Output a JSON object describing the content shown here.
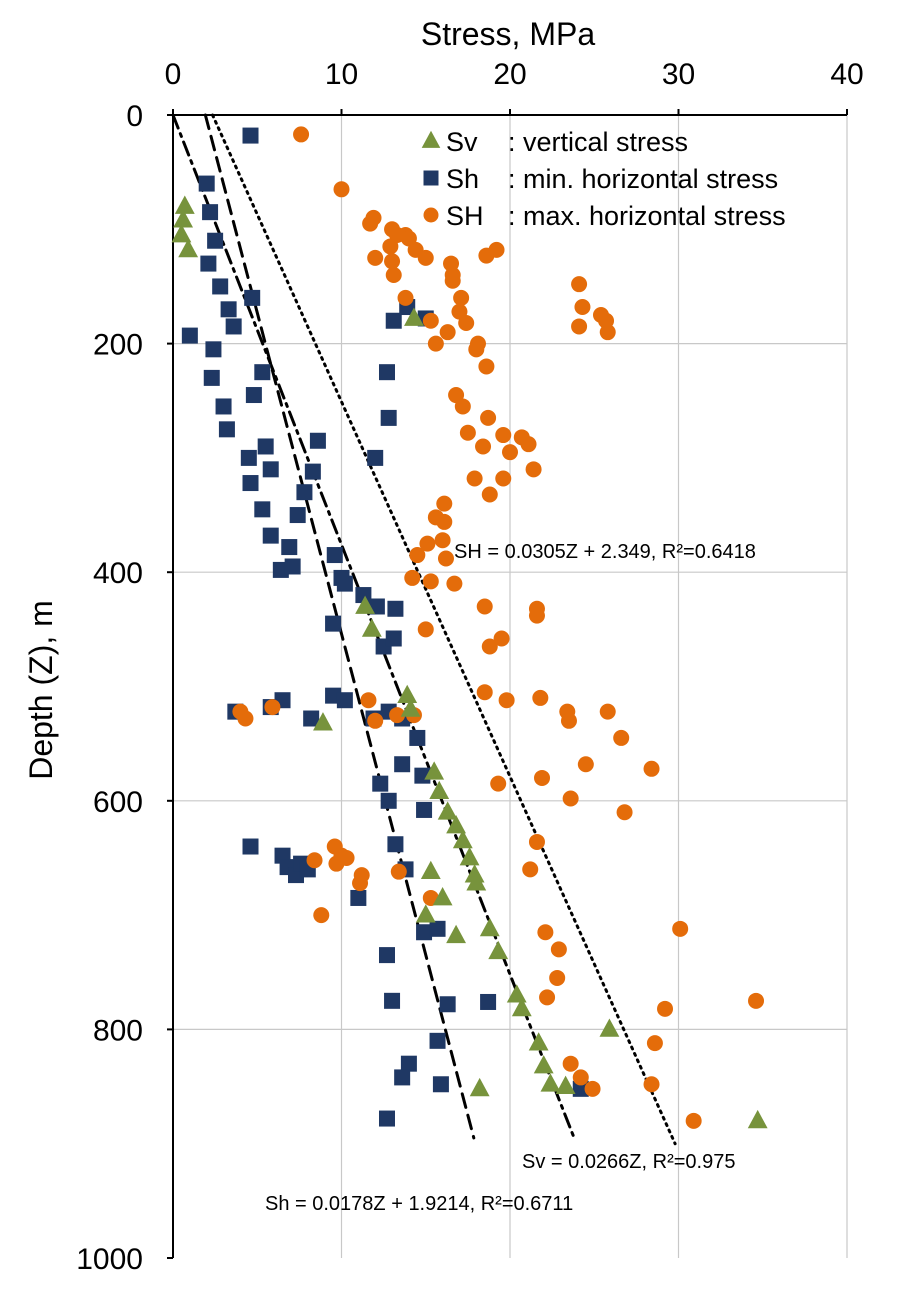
{
  "chart_data": {
    "type": "scatter",
    "xlabel": "Stress, MPa",
    "ylabel": "Depth (Z), m",
    "xlim": [
      0,
      40
    ],
    "ylim": [
      0,
      1000
    ],
    "y_inverted": true,
    "x_axis_position": "top",
    "x_ticks": [
      "0",
      "10",
      "20",
      "30",
      "40"
    ],
    "y_ticks": [
      "0",
      "200",
      "400",
      "600",
      "800",
      "1000"
    ],
    "grid": true,
    "legend_position": "top-right",
    "colors": {
      "Sv": "#77933c",
      "Sh": "#1f3864",
      "SH": "#e46c0a"
    },
    "series": [
      {
        "name": "Sv",
        "legend_label": ": vertical stress",
        "marker": "triangle",
        "points": [
          [
            0.7,
            80
          ],
          [
            0.6,
            92
          ],
          [
            0.5,
            105
          ],
          [
            0.9,
            118
          ],
          [
            14.3,
            178
          ],
          [
            8.9,
            532
          ],
          [
            11.4,
            430
          ],
          [
            11.8,
            450
          ],
          [
            13.9,
            508
          ],
          [
            14.1,
            520
          ],
          [
            15.5,
            575
          ],
          [
            15.8,
            592
          ],
          [
            16.3,
            610
          ],
          [
            16.8,
            622
          ],
          [
            17.2,
            635
          ],
          [
            17.6,
            650
          ],
          [
            17.9,
            665
          ],
          [
            18.0,
            672
          ],
          [
            15.3,
            662
          ],
          [
            15.0,
            700
          ],
          [
            16.0,
            685
          ],
          [
            16.8,
            718
          ],
          [
            18.8,
            712
          ],
          [
            19.3,
            732
          ],
          [
            20.4,
            770
          ],
          [
            20.7,
            782
          ],
          [
            21.7,
            812
          ],
          [
            22.0,
            832
          ],
          [
            22.4,
            848
          ],
          [
            23.3,
            850
          ],
          [
            25.9,
            800
          ],
          [
            18.2,
            852
          ],
          [
            34.7,
            880
          ]
        ]
      },
      {
        "name": "Sh",
        "legend_label": ": min. horizontal stress",
        "marker": "square",
        "points": [
          [
            4.6,
            18
          ],
          [
            2.0,
            60
          ],
          [
            2.2,
            85
          ],
          [
            2.5,
            110
          ],
          [
            2.1,
            130
          ],
          [
            2.8,
            150
          ],
          [
            3.3,
            170
          ],
          [
            1.0,
            193
          ],
          [
            3.6,
            185
          ],
          [
            4.7,
            160
          ],
          [
            2.4,
            205
          ],
          [
            2.3,
            230
          ],
          [
            3.0,
            255
          ],
          [
            3.2,
            275
          ],
          [
            4.8,
            245
          ],
          [
            5.3,
            225
          ],
          [
            4.5,
            300
          ],
          [
            4.6,
            322
          ],
          [
            5.5,
            290
          ],
          [
            5.8,
            310
          ],
          [
            5.3,
            345
          ],
          [
            5.8,
            368
          ],
          [
            6.9,
            378
          ],
          [
            6.4,
            398
          ],
          [
            7.1,
            395
          ],
          [
            7.4,
            350
          ],
          [
            7.8,
            330
          ],
          [
            8.3,
            312
          ],
          [
            8.6,
            285
          ],
          [
            9.6,
            385
          ],
          [
            10.0,
            405
          ],
          [
            10.2,
            410
          ],
          [
            9.5,
            445
          ],
          [
            11.3,
            420
          ],
          [
            12.1,
            430
          ],
          [
            13.2,
            432
          ],
          [
            12.5,
            465
          ],
          [
            13.1,
            458
          ],
          [
            12.0,
            300
          ],
          [
            12.8,
            265
          ],
          [
            13.1,
            180
          ],
          [
            13.9,
            168
          ],
          [
            15.0,
            178
          ],
          [
            12.7,
            225
          ],
          [
            3.7,
            522
          ],
          [
            5.8,
            518
          ],
          [
            6.5,
            512
          ],
          [
            8.2,
            528
          ],
          [
            9.5,
            508
          ],
          [
            10.2,
            512
          ],
          [
            11.9,
            528
          ],
          [
            12.8,
            522
          ],
          [
            13.6,
            528
          ],
          [
            14.5,
            545
          ],
          [
            12.3,
            585
          ],
          [
            12.8,
            600
          ],
          [
            13.6,
            568
          ],
          [
            14.8,
            578
          ],
          [
            14.9,
            608
          ],
          [
            4.6,
            640
          ],
          [
            6.5,
            648
          ],
          [
            6.8,
            658
          ],
          [
            7.3,
            665
          ],
          [
            7.6,
            655
          ],
          [
            8.0,
            660
          ],
          [
            11.0,
            685
          ],
          [
            12.7,
            735
          ],
          [
            13.0,
            775
          ],
          [
            13.2,
            638
          ],
          [
            13.8,
            660
          ],
          [
            14.9,
            715
          ],
          [
            15.7,
            712
          ],
          [
            16.3,
            778
          ],
          [
            18.7,
            776
          ],
          [
            15.7,
            810
          ],
          [
            14.0,
            830
          ],
          [
            13.6,
            842
          ],
          [
            15.9,
            848
          ],
          [
            12.7,
            878
          ],
          [
            24.2,
            852
          ]
        ]
      },
      {
        "name": "SH",
        "legend_label": ": max. horizontal stress",
        "marker": "circle",
        "points": [
          [
            7.6,
            17
          ],
          [
            10.0,
            65
          ],
          [
            11.9,
            90
          ],
          [
            11.7,
            95
          ],
          [
            13.0,
            100
          ],
          [
            13.3,
            105
          ],
          [
            12.9,
            115
          ],
          [
            13.8,
            105
          ],
          [
            12.0,
            125
          ],
          [
            13.0,
            128
          ],
          [
            14.0,
            108
          ],
          [
            14.4,
            118
          ],
          [
            13.1,
            140
          ],
          [
            13.8,
            160
          ],
          [
            15.0,
            125
          ],
          [
            16.5,
            130
          ],
          [
            16.6,
            140
          ],
          [
            16.6,
            145
          ],
          [
            18.6,
            123
          ],
          [
            19.2,
            118
          ],
          [
            17.1,
            160
          ],
          [
            17.0,
            172
          ],
          [
            17.4,
            182
          ],
          [
            18.0,
            205
          ],
          [
            15.3,
            180
          ],
          [
            15.6,
            200
          ],
          [
            16.3,
            190
          ],
          [
            18.1,
            200
          ],
          [
            18.6,
            220
          ],
          [
            24.1,
            148
          ],
          [
            24.3,
            168
          ],
          [
            24.1,
            185
          ],
          [
            25.4,
            175
          ],
          [
            25.7,
            180
          ],
          [
            25.8,
            190
          ],
          [
            16.8,
            245
          ],
          [
            17.2,
            255
          ],
          [
            18.7,
            265
          ],
          [
            17.5,
            278
          ],
          [
            18.4,
            290
          ],
          [
            17.9,
            318
          ],
          [
            18.8,
            332
          ],
          [
            19.6,
            280
          ],
          [
            20.7,
            282
          ],
          [
            21.1,
            288
          ],
          [
            21.4,
            310
          ],
          [
            20.0,
            295
          ],
          [
            19.6,
            318
          ],
          [
            16.1,
            340
          ],
          [
            15.6,
            352
          ],
          [
            16.1,
            356
          ],
          [
            14.5,
            385
          ],
          [
            15.1,
            375
          ],
          [
            16.0,
            372
          ],
          [
            16.2,
            388
          ],
          [
            14.2,
            405
          ],
          [
            15.3,
            408
          ],
          [
            16.7,
            410
          ],
          [
            15.0,
            450
          ],
          [
            18.5,
            430
          ],
          [
            18.8,
            465
          ],
          [
            19.5,
            458
          ],
          [
            21.6,
            432
          ],
          [
            21.6,
            438
          ],
          [
            18.5,
            505
          ],
          [
            19.8,
            512
          ],
          [
            21.8,
            510
          ],
          [
            23.4,
            522
          ],
          [
            23.5,
            530
          ],
          [
            25.8,
            522
          ],
          [
            24.5,
            568
          ],
          [
            26.6,
            545
          ],
          [
            28.4,
            572
          ],
          [
            26.8,
            610
          ],
          [
            21.9,
            580
          ],
          [
            19.3,
            585
          ],
          [
            23.6,
            598
          ],
          [
            21.6,
            636
          ],
          [
            21.2,
            660
          ],
          [
            13.3,
            525
          ],
          [
            11.6,
            512
          ],
          [
            12.0,
            530
          ],
          [
            4.0,
            522
          ],
          [
            4.3,
            528
          ],
          [
            5.9,
            518
          ],
          [
            8.4,
            652
          ],
          [
            9.6,
            640
          ],
          [
            9.7,
            655
          ],
          [
            10.0,
            648
          ],
          [
            10.3,
            650
          ],
          [
            11.2,
            665
          ],
          [
            11.1,
            672
          ],
          [
            13.4,
            662
          ],
          [
            14.3,
            525
          ],
          [
            15.3,
            685
          ],
          [
            8.8,
            700
          ],
          [
            22.1,
            715
          ],
          [
            22.9,
            730
          ],
          [
            22.8,
            755
          ],
          [
            22.2,
            772
          ],
          [
            30.1,
            712
          ],
          [
            29.2,
            782
          ],
          [
            34.6,
            775
          ],
          [
            28.6,
            812
          ],
          [
            23.6,
            830
          ],
          [
            24.2,
            842
          ],
          [
            24.9,
            852
          ],
          [
            28.4,
            848
          ],
          [
            30.9,
            880
          ]
        ]
      }
    ],
    "fits": [
      {
        "series": "SH",
        "equation": "SH = 0.0305Z + 2.349, R²=0.6418",
        "slope": 0.0305,
        "intercept": 2.349,
        "z_range": [
          0,
          900
        ],
        "style": "dotted"
      },
      {
        "series": "Sv",
        "equation": "Sv = 0.0266Z, R²=0.975",
        "slope": 0.0266,
        "intercept": 0,
        "z_range": [
          0,
          895
        ],
        "style": "dash-dot"
      },
      {
        "series": "Sh",
        "equation": "Sh = 0.0178Z + 1.9214, R²=0.6711",
        "slope": 0.0178,
        "intercept": 1.9214,
        "z_range": [
          0,
          895
        ],
        "style": "dashed"
      }
    ]
  }
}
